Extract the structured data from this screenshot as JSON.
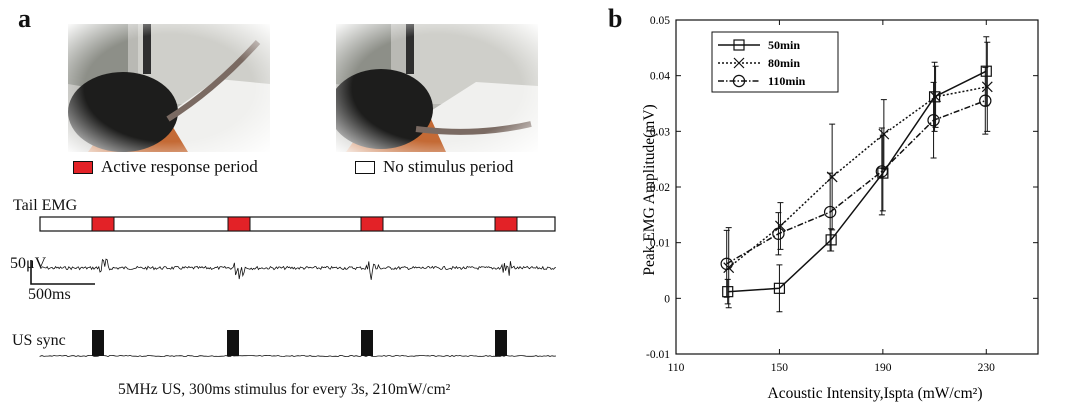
{
  "panel_a": {
    "letter": "a",
    "legend_active": "Active response period",
    "legend_none": "No stimulus period",
    "tail_emg_label": "Tail EMG",
    "scale_v": "50μV",
    "scale_t": "500ms",
    "us_sync_label": "US sync",
    "caption": "5MHz US, 300ms stimulus for every 3s, 210mW/cm²",
    "colors": {
      "active": "#e32227",
      "none": "#ffffff"
    },
    "photos": [
      "mouse-tail-raised-photo",
      "mouse-tail-resting-photo"
    ]
  },
  "panel_b": {
    "letter": "b"
  },
  "chart_data": {
    "type": "line",
    "x": [
      130,
      150,
      170,
      190,
      210,
      230
    ],
    "xlabel": "Acoustic Intensity,Ispta (mW/cm²)",
    "ylabel": "Peak EMG Amplitude(mV)",
    "xlim": [
      110,
      250
    ],
    "ylim": [
      -0.01,
      0.05
    ],
    "xticks": [
      "110",
      "150",
      "190",
      "230"
    ],
    "xtick_values": [
      110,
      150,
      190,
      230
    ],
    "yticks": [
      "-0.01",
      "0",
      "0.01",
      "0.02",
      "0.03",
      "0.04",
      "0.05"
    ],
    "ytick_values": [
      -0.01,
      0,
      0.01,
      0.02,
      0.03,
      0.04,
      0.05
    ],
    "grid": false,
    "legend_position": "top-left",
    "series": [
      {
        "name": "50min",
        "marker": "square",
        "dash": "solid",
        "values": [
          0.0012,
          0.0018,
          0.0105,
          0.0225,
          0.0362,
          0.0408
        ],
        "err": [
          0.0022,
          0.0042,
          0.002,
          0.0068,
          0.0062,
          0.0062
        ]
      },
      {
        "name": "80min",
        "marker": "x",
        "dash": "dotted",
        "values": [
          0.0055,
          0.013,
          0.0218,
          0.0295,
          0.0362,
          0.038
        ],
        "err": [
          0.0072,
          0.0042,
          0.0095,
          0.0062,
          0.0055,
          0.008
        ]
      },
      {
        "name": "110min",
        "marker": "circle",
        "dash": "dashdot",
        "values": [
          0.0062,
          0.0116,
          0.0155,
          0.0228,
          0.032,
          0.0355
        ],
        "err": [
          0.006,
          0.0038,
          0.007,
          0.0078,
          0.0068,
          0.006
        ]
      }
    ]
  }
}
